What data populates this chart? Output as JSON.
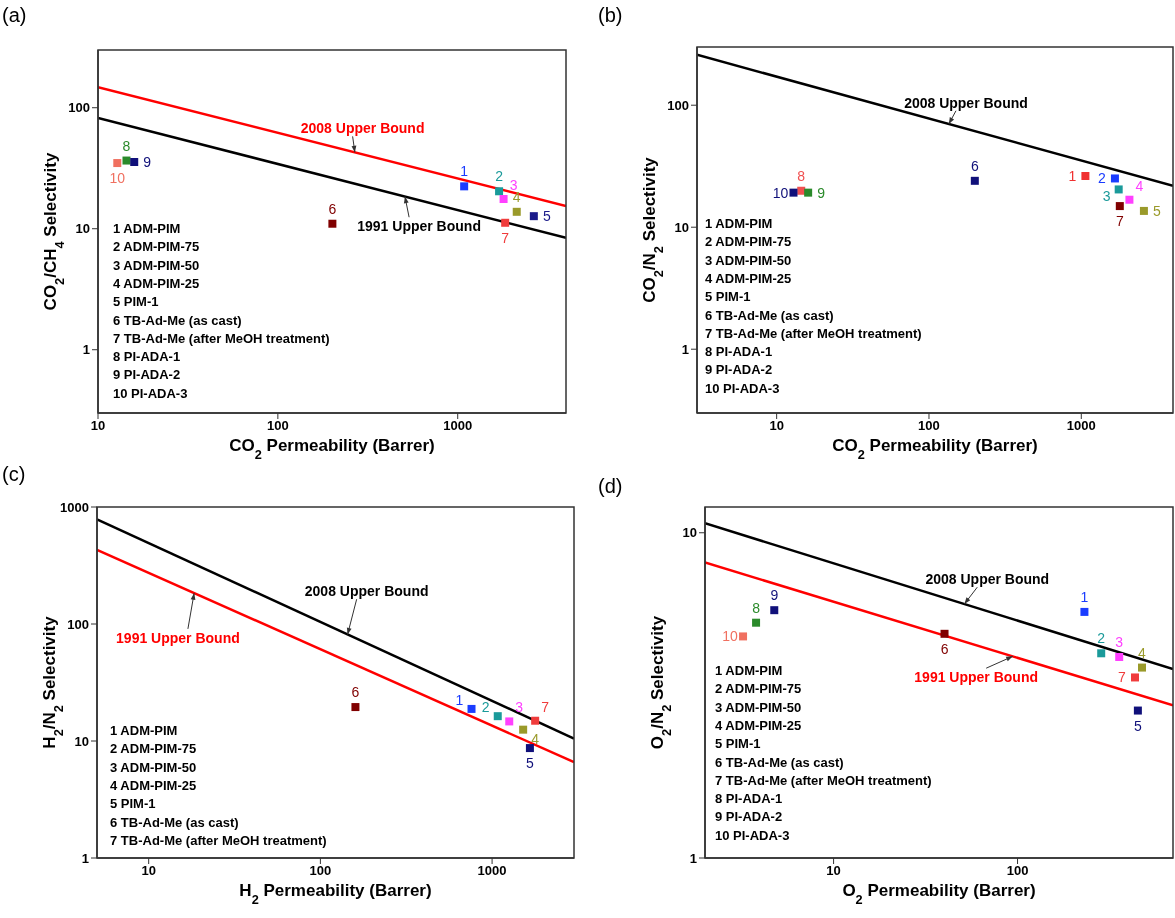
{
  "chart_data": [
    {
      "type": "scatter",
      "title": "(a)",
      "xlabel": "CO$_{2}$ Permeability (Barrer)",
      "ylabel": "CO$_{2}$/CH$_{4}$ Selectivity",
      "log": "xy",
      "xlim": [
        10,
        4000
      ],
      "xticks": [
        10,
        100,
        1000
      ],
      "ylim": [
        0.3,
        300
      ],
      "yticks": [
        1,
        10,
        100
      ],
      "marker": "square",
      "annotations": [
        "1 ADM-PIM",
        "2 ADM-PIM-75",
        "3 ADM-PIM-50",
        "4 ADM-PIM-25",
        "5 PIM-1",
        "6 TB-Ad-Me (as cast)",
        "7 TB-Ad-Me (after MeOH treatment)",
        "8 PI-ADA-1",
        "9 PI-ADA-2",
        "10 PI-ADA-3"
      ],
      "series": [
        {
          "name": "1",
          "color": "#1a3cff",
          "x": [
            1086
          ],
          "values": [
            22.4
          ]
        },
        {
          "name": "2",
          "color": "#1a9a9a",
          "x": [
            1698
          ],
          "values": [
            20.4
          ]
        },
        {
          "name": "3",
          "color": "#ff40ff",
          "x": [
            1799
          ],
          "values": [
            17.6
          ]
        },
        {
          "name": "4",
          "color": "#9a9a2a",
          "x": [
            2129
          ],
          "values": [
            13.8
          ]
        },
        {
          "name": "5",
          "color": "#1a1a8a",
          "x": [
            2650
          ],
          "values": [
            12.7
          ]
        },
        {
          "name": "6",
          "color": "#800000",
          "x": [
            201
          ],
          "values": [
            11.0
          ]
        },
        {
          "name": "7",
          "color": "#f03c3c",
          "x": [
            1836
          ],
          "values": [
            11.2
          ]
        },
        {
          "name": "8",
          "color": "#2a8a2a",
          "x": [
            14.4
          ],
          "values": [
            36.6
          ]
        },
        {
          "name": "9",
          "color": "#10107a",
          "x": [
            15.9
          ],
          "values": [
            35.6
          ]
        },
        {
          "name": "10",
          "color": "#f07060",
          "x": [
            12.8
          ],
          "values": [
            34.9
          ]
        },
        {
          "type": "line",
          "name": "2008 Upper Bound",
          "color": "#ff0000",
          "marker": "none",
          "x": [
            10,
            4000
          ],
          "values": [
            148,
            15.4
          ]
        },
        {
          "type": "line",
          "name": "1991 Upper Bound",
          "color": "#000000",
          "marker": "none",
          "x": [
            10,
            4000
          ],
          "values": [
            82.4,
            8.4
          ]
        }
      ]
    },
    {
      "type": "scatter",
      "title": "(b)",
      "xlabel": "CO$_{2}$ Permeability (Barrer)",
      "ylabel": "CO$_{2}$/N$_{2}$ Selectivity",
      "log": "xy",
      "xlim": [
        3,
        4000
      ],
      "xticks": [
        10,
        100,
        1000
      ],
      "ylim": [
        0.3,
        300
      ],
      "yticks": [
        1,
        10,
        100
      ],
      "marker": "square",
      "annotations": [
        "1 ADM-PIM",
        "2 ADM-PIM-75",
        "3 ADM-PIM-50",
        "4 ADM-PIM-25",
        "5 PIM-1",
        "6 TB-Ad-Me (as cast)",
        "7 TB-Ad-Me (after MeOH treatment)",
        "8 PI-ADA-1",
        "9 PI-ADA-2",
        "10 PI-ADA-3"
      ],
      "series": [
        {
          "name": "1",
          "color": "#f03030",
          "x": [
            1064
          ],
          "values": [
            26.3
          ]
        },
        {
          "name": "2",
          "color": "#1a3cff",
          "x": [
            1663
          ],
          "values": [
            25.1
          ]
        },
        {
          "name": "3",
          "color": "#1a9a9a",
          "x": [
            1760
          ],
          "values": [
            20.4
          ]
        },
        {
          "name": "4",
          "color": "#ff40ff",
          "x": [
            2070
          ],
          "values": [
            16.8
          ]
        },
        {
          "name": "5",
          "color": "#9a9a2a",
          "x": [
            2577
          ],
          "values": [
            13.6
          ]
        },
        {
          "name": "6",
          "color": "#10107a",
          "x": [
            200
          ],
          "values": [
            24.0
          ]
        },
        {
          "name": "7",
          "color": "#800000",
          "x": [
            1790
          ],
          "values": [
            14.9
          ]
        },
        {
          "name": "8",
          "color": "#f05050",
          "x": [
            14.5
          ],
          "values": [
            19.9
          ]
        },
        {
          "name": "9",
          "color": "#2a8a2a",
          "x": [
            16.1
          ],
          "values": [
            19.2
          ]
        },
        {
          "name": "10",
          "color": "#10107a",
          "x": [
            12.9
          ],
          "values": [
            19.2
          ]
        },
        {
          "type": "line",
          "name": "2008 Upper Bound",
          "color": "#000000",
          "marker": "none",
          "x": [
            3,
            4000
          ],
          "values": [
            259,
            21.9
          ]
        }
      ]
    },
    {
      "type": "scatter",
      "title": "(c)",
      "xlabel": "H$_{2}$ Permeability (Barrer)",
      "ylabel": "H$_{2}$/N$_{2}$ Selectivity",
      "log": "xy",
      "xlim": [
        5,
        3000
      ],
      "xticks": [
        10,
        100,
        1000
      ],
      "ylim": [
        1,
        1000
      ],
      "yticks": [
        1,
        10,
        100,
        1000
      ],
      "marker": "square",
      "annotations": [
        "1 ADM-PIM",
        "2 ADM-PIM-75",
        "3 ADM-PIM-50",
        "4 ADM-PIM-25",
        "5 PIM-1",
        "6 TB-Ad-Me (as cast)",
        "7 TB-Ad-Me (after MeOH treatment)"
      ],
      "series": [
        {
          "name": "1",
          "color": "#1a3cff",
          "x": [
            759
          ],
          "values": [
            18.8
          ]
        },
        {
          "name": "2",
          "color": "#1a9a9a",
          "x": [
            1079
          ],
          "values": [
            16.3
          ]
        },
        {
          "name": "3",
          "color": "#ff40ff",
          "x": [
            1259
          ],
          "values": [
            14.7
          ]
        },
        {
          "name": "4",
          "color": "#9a9a2a",
          "x": [
            1517
          ],
          "values": [
            12.5
          ]
        },
        {
          "name": "5",
          "color": "#10107a",
          "x": [
            1661
          ],
          "values": [
            8.7
          ]
        },
        {
          "name": "6",
          "color": "#800000",
          "x": [
            160
          ],
          "values": [
            19.5
          ]
        },
        {
          "name": "7",
          "color": "#f03c3c",
          "x": [
            1782
          ],
          "values": [
            14.9
          ]
        },
        {
          "type": "line",
          "name": "2008 Upper Bound",
          "color": "#000000",
          "marker": "none",
          "x": [
            5,
            3000
          ],
          "values": [
            785,
            10.5
          ]
        },
        {
          "type": "line",
          "name": "1991 Upper Bound",
          "color": "#ff0000",
          "marker": "none",
          "x": [
            5,
            3000
          ],
          "values": [
            430,
            6.6
          ]
        }
      ]
    },
    {
      "type": "scatter",
      "title": "(d)",
      "xlabel": "O$_{2}$ Permeability (Barrer)",
      "ylabel": "O$_{2}$/N$_{2}$ Selectivity",
      "log": "xy",
      "xlim": [
        2,
        700
      ],
      "xticks": [
        10,
        100
      ],
      "ylim": [
        1,
        12
      ],
      "yticks": [
        1,
        10
      ],
      "marker": "square",
      "annotations": [
        "1 ADM-PIM",
        "2 ADM-PIM-75",
        "3 ADM-PIM-50",
        "4 ADM-PIM-25",
        "5 PIM-1",
        "6 TB-Ad-Me (as cast)",
        "7 TB-Ad-Me (after MeOH treatment)",
        "8 PI-ADA-1",
        "9 PI-ADA-2",
        "10 PI-ADA-3"
      ],
      "series": [
        {
          "name": "1",
          "color": "#1a3cff",
          "x": [
            231
          ],
          "values": [
            5.71
          ]
        },
        {
          "name": "2",
          "color": "#1a9a9a",
          "x": [
            285
          ],
          "values": [
            4.26
          ]
        },
        {
          "name": "3",
          "color": "#ff40ff",
          "x": [
            357
          ],
          "values": [
            4.15
          ]
        },
        {
          "name": "4",
          "color": "#9a9a2a",
          "x": [
            475
          ],
          "values": [
            3.85
          ]
        },
        {
          "name": "5",
          "color": "#10107a",
          "x": [
            451
          ],
          "values": [
            2.84
          ]
        },
        {
          "name": "6",
          "color": "#800000",
          "x": [
            40.1
          ],
          "values": [
            4.89
          ]
        },
        {
          "name": "7",
          "color": "#f03c3c",
          "x": [
            435
          ],
          "values": [
            3.59
          ]
        },
        {
          "name": "8",
          "color": "#2a8a2a",
          "x": [
            3.79
          ],
          "values": [
            5.29
          ]
        },
        {
          "name": "9",
          "color": "#10107a",
          "x": [
            4.76
          ],
          "values": [
            5.78
          ]
        },
        {
          "name": "10",
          "color": "#f07060",
          "x": [
            3.22
          ],
          "values": [
            4.8
          ]
        },
        {
          "type": "line",
          "name": "2008 Upper Bound",
          "color": "#000000",
          "marker": "none",
          "x": [
            2,
            700
          ],
          "values": [
            10.7,
            3.81
          ]
        },
        {
          "type": "line",
          "name": "1991 Upper Bound",
          "color": "#ff0000",
          "marker": "none",
          "x": [
            2,
            700
          ],
          "values": [
            8.1,
            2.95
          ]
        }
      ]
    }
  ]
}
